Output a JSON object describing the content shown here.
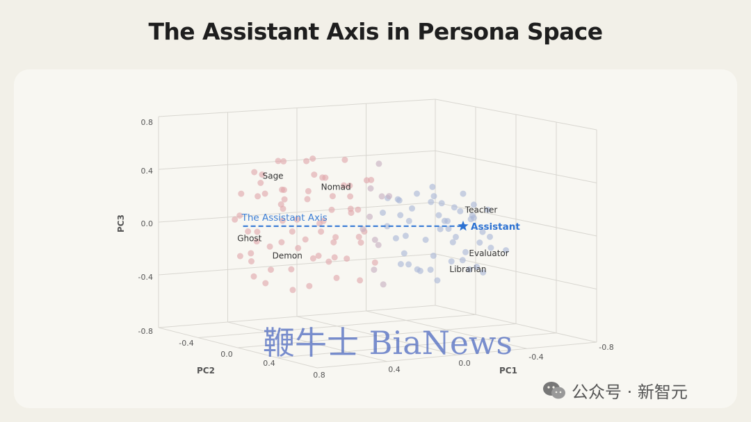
{
  "title": "The Assistant Axis in Persona Space",
  "watermark": "鞭牛士 BiaNews",
  "credit": "公众号 · 新智元",
  "colors": {
    "red_points": "#e0a7ab",
    "blue_points": "#a9b6d7",
    "axis_line": "#3d7fd6",
    "assistant_star": "#2d72d2",
    "grid": "#d8d6d0",
    "text": "#333333"
  },
  "chart_data": {
    "type": "scatter",
    "projection": "3d",
    "title": "The Assistant Axis in Persona Space",
    "axes": {
      "pc1": {
        "label": "PC1",
        "ticks": [
          "0.8",
          "0.4",
          "0.0",
          "-0.4",
          "-0.8"
        ],
        "range": [
          0.8,
          -0.8
        ]
      },
      "pc2": {
        "label": "PC2",
        "ticks": [
          "-0.4",
          "0.0",
          "0.4",
          "0.8"
        ],
        "range": [
          -0.8,
          0.8
        ]
      },
      "pc3": {
        "label": "PC3",
        "ticks": [
          "0.8",
          "0.4",
          "0.0",
          "-0.4",
          "-0.8"
        ],
        "range": [
          -0.8,
          0.8
        ]
      }
    },
    "grid": true,
    "assistant_axis": {
      "label": "The Assistant Axis",
      "style": "dashed",
      "from": {
        "pc1": 0.68,
        "pc2": 0.0,
        "pc3": -0.02
      },
      "to": {
        "pc1": -0.45,
        "pc2": 0.0,
        "pc3": -0.02
      }
    },
    "highlight": {
      "label": "Assistant",
      "marker": "star",
      "pc1": -0.45,
      "pc2": 0.0,
      "pc3": -0.02
    },
    "annotations": [
      {
        "label": "Sage",
        "pc1": 0.58,
        "pc2": 0.0,
        "pc3": 0.33
      },
      {
        "label": "Nomad",
        "pc1": 0.28,
        "pc2": 0.0,
        "pc3": 0.25
      },
      {
        "label": "Ghost",
        "pc1": 0.71,
        "pc2": 0.0,
        "pc3": -0.13
      },
      {
        "label": "Demon",
        "pc1": 0.53,
        "pc2": 0.0,
        "pc3": -0.26
      },
      {
        "label": "Teacher",
        "pc1": -0.46,
        "pc2": 0.0,
        "pc3": 0.08
      },
      {
        "label": "Evaluator",
        "pc1": -0.48,
        "pc2": 0.0,
        "pc3": -0.24
      },
      {
        "label": "Librarian",
        "pc1": -0.38,
        "pc2": 0.0,
        "pc3": -0.36
      }
    ],
    "series": [
      {
        "color": "#e0a7ab",
        "points": [
          [
            0.71,
            0.1,
            0.05
          ],
          [
            0.68,
            -0.2,
            -0.1
          ],
          [
            0.66,
            0.3,
            0.12
          ],
          [
            0.64,
            0.0,
            -0.22
          ],
          [
            0.62,
            -0.3,
            0.3
          ],
          [
            0.6,
            0.2,
            -0.35
          ],
          [
            0.58,
            -0.1,
            0.2
          ],
          [
            0.56,
            0.4,
            -0.05
          ],
          [
            0.55,
            -0.4,
            0.38
          ],
          [
            0.53,
            0.1,
            -0.15
          ],
          [
            0.51,
            -0.2,
            0.1
          ],
          [
            0.5,
            0.3,
            -0.28
          ],
          [
            0.48,
            0.0,
            0.25
          ],
          [
            0.47,
            -0.3,
            -0.4
          ],
          [
            0.45,
            0.2,
            0.15
          ],
          [
            0.44,
            -0.1,
            -0.08
          ],
          [
            0.42,
            0.4,
            0.33
          ],
          [
            0.41,
            -0.4,
            -0.2
          ],
          [
            0.39,
            0.1,
            0.05
          ],
          [
            0.38,
            -0.2,
            0.42
          ],
          [
            0.36,
            0.3,
            -0.12
          ],
          [
            0.35,
            0.0,
            0.18
          ],
          [
            0.33,
            -0.3,
            -0.3
          ],
          [
            0.32,
            0.2,
            0.28
          ],
          [
            0.3,
            -0.1,
            -0.02
          ],
          [
            0.29,
            0.4,
            -0.38
          ],
          [
            0.27,
            -0.4,
            0.12
          ],
          [
            0.26,
            0.1,
            0.36
          ],
          [
            0.24,
            -0.2,
            -0.18
          ],
          [
            0.23,
            0.3,
            0.08
          ],
          [
            0.21,
            0.0,
            -0.25
          ],
          [
            0.2,
            -0.3,
            0.22
          ],
          [
            0.18,
            0.2,
            -0.06
          ],
          [
            0.17,
            -0.1,
            0.45
          ],
          [
            0.15,
            0.4,
            -0.32
          ],
          [
            0.14,
            -0.4,
            0.02
          ],
          [
            0.12,
            0.1,
            0.3
          ],
          [
            0.11,
            -0.2,
            -0.14
          ],
          [
            0.09,
            0.3,
            0.17
          ],
          [
            0.08,
            0.0,
            -0.42
          ],
          [
            0.06,
            -0.3,
            0.26
          ],
          [
            0.05,
            0.2,
            -0.1
          ],
          [
            0.69,
            0.0,
            0.22
          ],
          [
            0.65,
            -0.1,
            -0.3
          ],
          [
            0.61,
            0.1,
            0.4
          ],
          [
            0.57,
            0.3,
            0.0
          ],
          [
            0.52,
            -0.3,
            -0.2
          ],
          [
            0.46,
            0.1,
            0.48
          ],
          [
            0.4,
            0.2,
            -0.45
          ],
          [
            0.34,
            -0.2,
            0.32
          ],
          [
            0.28,
            0.0,
            -0.06
          ],
          [
            0.22,
            0.3,
            0.4
          ],
          [
            0.16,
            -0.1,
            -0.28
          ],
          [
            0.1,
            0.2,
            0.12
          ],
          [
            0.04,
            -0.3,
            -0.35
          ],
          [
            0.67,
            0.2,
            -0.2
          ],
          [
            0.63,
            -0.2,
            0.16
          ],
          [
            0.59,
            0.0,
            0.3
          ],
          [
            0.54,
            0.2,
            -0.4
          ],
          [
            0.49,
            -0.1,
            0.0
          ],
          [
            0.43,
            0.3,
            0.24
          ],
          [
            0.37,
            -0.4,
            -0.34
          ],
          [
            0.31,
            0.1,
            0.5
          ],
          [
            0.25,
            -0.2,
            0.06
          ],
          [
            0.19,
            0.4,
            -0.2
          ],
          [
            0.13,
            0.0,
            0.2
          ],
          [
            0.07,
            -0.1,
            -0.08
          ],
          [
            0.02,
            0.2,
            0.36
          ]
        ]
      },
      {
        "color": "#a9b6d7",
        "points": [
          [
            -0.05,
            0.1,
            0.1
          ],
          [
            -0.08,
            -0.2,
            -0.15
          ],
          [
            -0.1,
            0.3,
            0.25
          ],
          [
            -0.13,
            0.0,
            -0.3
          ],
          [
            -0.15,
            -0.3,
            0.05
          ],
          [
            -0.18,
            0.2,
            -0.05
          ],
          [
            -0.2,
            -0.1,
            0.2
          ],
          [
            -0.22,
            0.4,
            -0.22
          ],
          [
            -0.25,
            -0.4,
            0.12
          ],
          [
            -0.27,
            0.1,
            -0.1
          ],
          [
            -0.3,
            -0.2,
            0.02
          ],
          [
            -0.32,
            0.3,
            -0.28
          ],
          [
            -0.34,
            0.0,
            0.15
          ],
          [
            -0.36,
            -0.3,
            -0.2
          ],
          [
            -0.38,
            0.2,
            0.06
          ],
          [
            -0.4,
            -0.1,
            -0.12
          ],
          [
            -0.42,
            0.4,
            0.1
          ],
          [
            -0.44,
            -0.4,
            -0.05
          ],
          [
            -0.46,
            0.1,
            -0.25
          ],
          [
            -0.48,
            -0.2,
            0.0
          ],
          [
            -0.5,
            0.3,
            -0.15
          ],
          [
            -0.52,
            0.0,
            -0.32
          ],
          [
            -0.54,
            -0.3,
            0.04
          ],
          [
            -0.56,
            0.2,
            -0.1
          ],
          [
            -0.58,
            -0.1,
            -0.2
          ],
          [
            -0.6,
            0.4,
            0.02
          ],
          [
            -0.62,
            -0.4,
            -0.28
          ],
          [
            -0.06,
            0.0,
            -0.02
          ],
          [
            -0.11,
            -0.1,
            0.15
          ],
          [
            -0.16,
            0.1,
            -0.2
          ],
          [
            -0.21,
            0.3,
            0.08
          ],
          [
            -0.26,
            -0.3,
            -0.3
          ],
          [
            -0.31,
            0.2,
            0.2
          ],
          [
            -0.35,
            -0.2,
            -0.08
          ],
          [
            -0.39,
            0.0,
            -0.28
          ],
          [
            -0.43,
            0.2,
            0.16
          ],
          [
            -0.47,
            -0.1,
            -0.36
          ],
          [
            -0.51,
            0.1,
            0.08
          ],
          [
            -0.55,
            -0.3,
            -0.16
          ],
          [
            -0.59,
            0.3,
            -0.3
          ],
          [
            -0.33,
            0.1,
            -0.4
          ],
          [
            -0.28,
            -0.1,
            0.25
          ],
          [
            -0.23,
            0.0,
            -0.35
          ],
          [
            -0.45,
            0.0,
            0.22
          ],
          [
            -0.53,
            0.2,
            0.18
          ],
          [
            -0.19,
            -0.2,
            -0.38
          ],
          [
            -0.14,
            0.2,
            0.22
          ],
          [
            -0.09,
            -0.3,
            0.0
          ],
          [
            -0.37,
            0.3,
            0.02
          ],
          [
            -0.41,
            -0.2,
            0.05
          ]
        ]
      },
      {
        "color": "#c7aec0",
        "points": [
          [
            0.03,
            0.0,
            0.05
          ],
          [
            0.01,
            -0.2,
            -0.2
          ],
          [
            0.0,
            0.2,
            0.3
          ],
          [
            -0.01,
            0.1,
            -0.1
          ],
          [
            -0.02,
            -0.1,
            0.18
          ],
          [
            -0.03,
            0.3,
            -0.28
          ],
          [
            0.02,
            -0.3,
            0.38
          ],
          [
            -0.04,
            0.0,
            -0.45
          ],
          [
            0.04,
            0.2,
            0.0
          ],
          [
            -0.02,
            -0.4,
            0.12
          ]
        ]
      }
    ]
  }
}
